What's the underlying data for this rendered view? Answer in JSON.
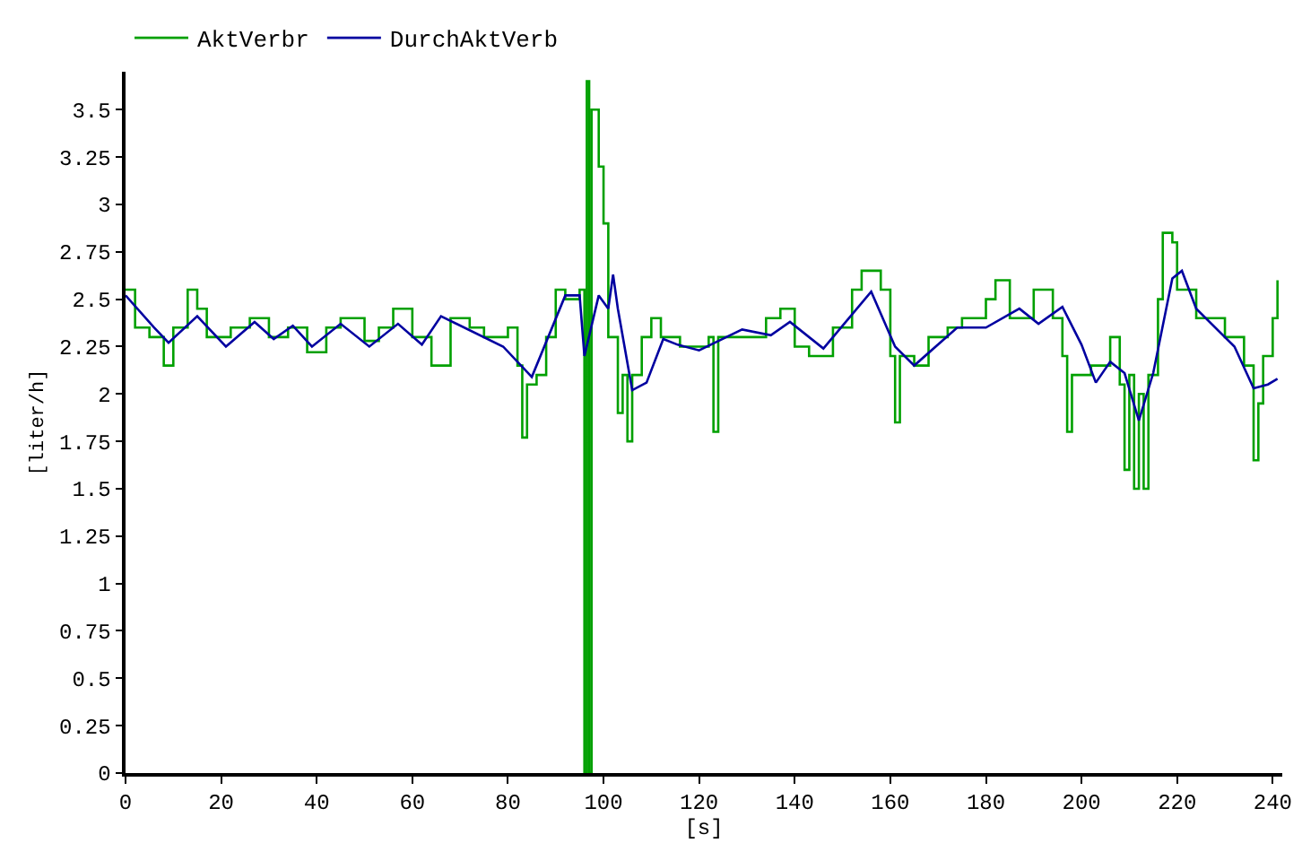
{
  "chart_data": {
    "type": "line",
    "xlabel": "[s]",
    "ylabel": "[liter/h]",
    "xlim": [
      0,
      242
    ],
    "ylim": [
      0,
      3.7
    ],
    "xticks": [
      0,
      20,
      40,
      60,
      80,
      100,
      120,
      140,
      160,
      180,
      200,
      220,
      240
    ],
    "yticks": [
      0,
      0.25,
      0.5,
      0.75,
      1,
      1.25,
      1.5,
      1.75,
      2,
      2.25,
      2.5,
      2.75,
      3,
      3.25,
      3.5
    ],
    "legend": "top left",
    "marker": "none",
    "line_style": "solid",
    "series": [
      {
        "name": "AktVerbr",
        "type": "step",
        "color": "#00a000",
        "x": [
          0,
          2,
          5,
          8,
          10,
          13,
          15,
          17,
          22,
          26,
          30,
          34,
          38,
          42,
          45,
          50,
          53,
          56,
          60,
          64,
          68,
          72,
          75,
          80,
          82,
          83,
          84,
          86,
          88,
          90,
          92,
          95,
          96,
          96.5,
          97,
          97.5,
          99,
          100,
          101,
          103,
          104,
          105,
          106,
          108,
          110,
          112,
          116,
          122,
          123,
          124,
          130,
          134,
          137,
          140,
          143,
          148,
          152,
          154,
          158,
          160,
          161,
          162,
          165,
          168,
          172,
          175,
          180,
          182,
          185,
          190,
          194,
          196,
          197,
          198,
          202,
          206,
          208,
          209,
          210,
          211,
          212,
          213,
          214,
          216,
          217,
          219,
          220,
          224,
          230,
          234,
          236,
          237,
          238,
          240,
          241
        ],
        "values": [
          2.55,
          2.35,
          2.3,
          2.15,
          2.35,
          2.55,
          2.45,
          2.3,
          2.35,
          2.4,
          2.3,
          2.35,
          2.22,
          2.35,
          2.4,
          2.28,
          2.35,
          2.45,
          2.3,
          2.15,
          2.4,
          2.35,
          2.3,
          2.35,
          2.15,
          1.77,
          2.05,
          2.1,
          2.3,
          2.55,
          2.5,
          2.55,
          0,
          3.65,
          0,
          3.5,
          3.2,
          2.9,
          2.3,
          1.9,
          2.1,
          1.75,
          2.1,
          2.3,
          2.4,
          2.3,
          2.25,
          2.3,
          1.8,
          2.3,
          2.3,
          2.4,
          2.45,
          2.25,
          2.2,
          2.35,
          2.55,
          2.65,
          2.55,
          2.2,
          1.85,
          2.2,
          2.15,
          2.3,
          2.35,
          2.4,
          2.5,
          2.6,
          2.4,
          2.55,
          2.4,
          2.2,
          1.8,
          2.1,
          2.15,
          2.3,
          2.05,
          1.6,
          2.1,
          1.5,
          2.0,
          1.5,
          2.1,
          2.5,
          2.85,
          2.8,
          2.55,
          2.4,
          2.3,
          2.15,
          1.65,
          1.95,
          2.2,
          2.4,
          2.6
        ]
      },
      {
        "name": "DurchAktVerb",
        "color": "#0000a0",
        "x": [
          0,
          6,
          9,
          15,
          21,
          27,
          31,
          35,
          39,
          45,
          51,
          57,
          62,
          66,
          79,
          85,
          92,
          95,
          96,
          99,
          101,
          102,
          103,
          106,
          109,
          112.5,
          115.5,
          120,
          129,
          135,
          139,
          146,
          156,
          161,
          165,
          174,
          180,
          187,
          191,
          196,
          200,
          203,
          206,
          209,
          212,
          215,
          219,
          221,
          224,
          232,
          236,
          239,
          241
        ],
        "values": [
          2.52,
          2.35,
          2.27,
          2.41,
          2.25,
          2.38,
          2.29,
          2.36,
          2.25,
          2.37,
          2.25,
          2.37,
          2.26,
          2.41,
          2.25,
          2.09,
          2.52,
          2.52,
          2.2,
          2.52,
          2.45,
          2.63,
          2.45,
          2.02,
          2.06,
          2.29,
          2.26,
          2.23,
          2.34,
          2.31,
          2.38,
          2.24,
          2.54,
          2.25,
          2.15,
          2.35,
          2.35,
          2.45,
          2.37,
          2.46,
          2.26,
          2.06,
          2.17,
          2.11,
          1.86,
          2.11,
          2.61,
          2.65,
          2.45,
          2.25,
          2.03,
          2.05,
          2.08
        ]
      }
    ]
  }
}
